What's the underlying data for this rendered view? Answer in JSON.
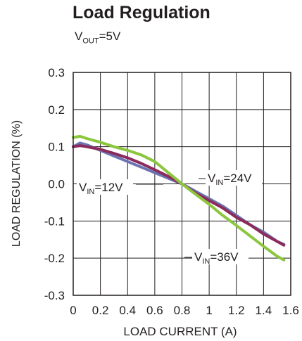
{
  "chart_data": {
    "type": "line",
    "title": "Load Regulation",
    "subtitle": {
      "main": "V",
      "sub": "OUT",
      "rest": "=5V"
    },
    "xlabel": "LOAD CURRENT (A)",
    "ylabel": "LOAD REGULATION (%)",
    "xlim": [
      0,
      1.6
    ],
    "ylim": [
      -0.3,
      0.3
    ],
    "xticks": [
      0,
      0.2,
      0.4,
      0.6,
      0.8,
      1,
      1.2,
      1.4,
      1.6
    ],
    "xtick_labels": [
      "0",
      "0.2",
      "0.4",
      "0.6",
      "0.8",
      "1",
      "1.2",
      "1.4",
      "1.6"
    ],
    "yticks": [
      0.3,
      0.2,
      0.1,
      0.0,
      -0.1,
      -0.2,
      -0.3
    ],
    "ytick_labels": [
      "0.3",
      "0.2",
      "0.1",
      "0.0",
      "-0.1",
      "-0.2",
      "-0.3"
    ],
    "grid": true,
    "legend": "none",
    "series": [
      {
        "key": "vin12",
        "color": "#6b74b0",
        "label": {
          "main": "V",
          "sub": "IN",
          "rest": "=12V"
        },
        "x": [
          0,
          0.05,
          0.1,
          0.2,
          0.3,
          0.4,
          0.5,
          0.6,
          0.7,
          0.8,
          0.9,
          1.0,
          1.1,
          1.2,
          1.3,
          1.4,
          1.5,
          1.55
        ],
        "y": [
          0.1,
          0.11,
          0.105,
          0.09,
          0.075,
          0.06,
          0.045,
          0.03,
          0.015,
          0.0,
          -0.02,
          -0.04,
          -0.06,
          -0.085,
          -0.11,
          -0.13,
          -0.155,
          -0.163
        ]
      },
      {
        "key": "vin24",
        "color": "#8c2a5c",
        "label": {
          "main": "V",
          "sub": "IN",
          "rest": "=24V"
        },
        "x": [
          0,
          0.05,
          0.1,
          0.2,
          0.3,
          0.4,
          0.5,
          0.6,
          0.7,
          0.8,
          0.9,
          1.0,
          1.1,
          1.2,
          1.3,
          1.4,
          1.5,
          1.55
        ],
        "y": [
          0.1,
          0.103,
          0.1,
          0.093,
          0.082,
          0.07,
          0.055,
          0.038,
          0.02,
          0.0,
          -0.025,
          -0.045,
          -0.065,
          -0.09,
          -0.11,
          -0.135,
          -0.155,
          -0.165
        ]
      },
      {
        "key": "vin36",
        "color": "#8cc63f",
        "label": {
          "main": "V",
          "sub": "IN",
          "rest": "=36V"
        },
        "x": [
          0,
          0.05,
          0.1,
          0.2,
          0.3,
          0.4,
          0.5,
          0.6,
          0.7,
          0.8,
          0.9,
          1.0,
          1.1,
          1.2,
          1.3,
          1.4,
          1.5,
          1.55
        ],
        "y": [
          0.125,
          0.128,
          0.122,
          0.112,
          0.1,
          0.09,
          0.078,
          0.06,
          0.03,
          0.0,
          -0.028,
          -0.055,
          -0.085,
          -0.112,
          -0.14,
          -0.168,
          -0.195,
          -0.205
        ]
      }
    ]
  }
}
